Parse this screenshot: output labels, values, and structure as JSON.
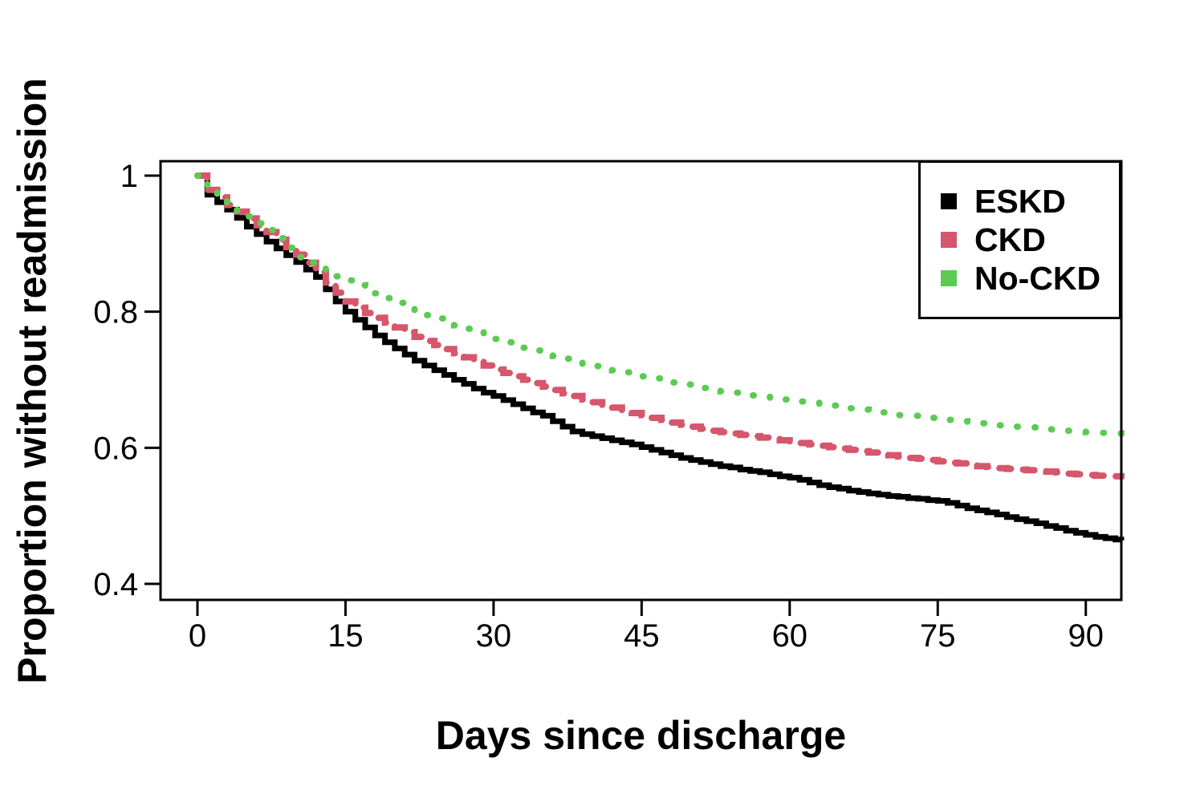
{
  "chart_data": {
    "type": "line",
    "subtype": "kaplan-meier-step",
    "title": "",
    "xlabel": "Days since discharge",
    "ylabel": "Proportion without readmission",
    "xlim": [
      -3.74,
      93.6
    ],
    "ylim": [
      0.3764,
      1.0212
    ],
    "xticks": [
      0,
      15,
      30,
      45,
      60,
      75,
      90
    ],
    "xtick_labels": [
      "0",
      "15",
      "30",
      "45",
      "60",
      "75",
      "90"
    ],
    "yticks": [
      0.4,
      0.6,
      0.8,
      1
    ],
    "ytick_labels": [
      "0.4",
      "0.6",
      "0.8",
      "1"
    ],
    "grid": false,
    "legend": {
      "position": "top-right",
      "border": true
    },
    "series": [
      {
        "name": "ESKD",
        "color": "#000000",
        "line_style": "solid",
        "line_width": 7,
        "points": [
          [
            0,
            1.0
          ],
          [
            1,
            0.972
          ],
          [
            2,
            0.961
          ],
          [
            3,
            0.95
          ],
          [
            4,
            0.938
          ],
          [
            5,
            0.925
          ],
          [
            6,
            0.914
          ],
          [
            7,
            0.903
          ],
          [
            8,
            0.893
          ],
          [
            9,
            0.883
          ],
          [
            10,
            0.873
          ],
          [
            11,
            0.862
          ],
          [
            12,
            0.851
          ],
          [
            13,
            0.833
          ],
          [
            14,
            0.815
          ],
          [
            15,
            0.8
          ],
          [
            16,
            0.788
          ],
          [
            17,
            0.777
          ],
          [
            18,
            0.765
          ],
          [
            19,
            0.755
          ],
          [
            20,
            0.746
          ],
          [
            21,
            0.737
          ],
          [
            22,
            0.728
          ],
          [
            23,
            0.721
          ],
          [
            24,
            0.714
          ],
          [
            25,
            0.707
          ],
          [
            26,
            0.7
          ],
          [
            27,
            0.694
          ],
          [
            28,
            0.687
          ],
          [
            29,
            0.681
          ],
          [
            30,
            0.676
          ],
          [
            31,
            0.67
          ],
          [
            32,
            0.664
          ],
          [
            33,
            0.658
          ],
          [
            34,
            0.652
          ],
          [
            35,
            0.647
          ],
          [
            36,
            0.639
          ],
          [
            37,
            0.631
          ],
          [
            38,
            0.624
          ],
          [
            39,
            0.62
          ],
          [
            40,
            0.617
          ],
          [
            41,
            0.614
          ],
          [
            42,
            0.611
          ],
          [
            43,
            0.608
          ],
          [
            44,
            0.605
          ],
          [
            45,
            0.601
          ],
          [
            46,
            0.597
          ],
          [
            47,
            0.593
          ],
          [
            48,
            0.589
          ],
          [
            49,
            0.585
          ],
          [
            50,
            0.582
          ],
          [
            51,
            0.579
          ],
          [
            52,
            0.576
          ],
          [
            53,
            0.573
          ],
          [
            54,
            0.571
          ],
          [
            55,
            0.568
          ],
          [
            56,
            0.566
          ],
          [
            57,
            0.564
          ],
          [
            58,
            0.561
          ],
          [
            59,
            0.558
          ],
          [
            60,
            0.556
          ],
          [
            61,
            0.553
          ],
          [
            62,
            0.549
          ],
          [
            63,
            0.545
          ],
          [
            64,
            0.542
          ],
          [
            65,
            0.54
          ],
          [
            66,
            0.537
          ],
          [
            67,
            0.535
          ],
          [
            68,
            0.533
          ],
          [
            69,
            0.531
          ],
          [
            70,
            0.529
          ],
          [
            71,
            0.528
          ],
          [
            72,
            0.526
          ],
          [
            73,
            0.525
          ],
          [
            74,
            0.523
          ],
          [
            75,
            0.522
          ],
          [
            76,
            0.519
          ],
          [
            77,
            0.515
          ],
          [
            78,
            0.511
          ],
          [
            79,
            0.508
          ],
          [
            80,
            0.505
          ],
          [
            81,
            0.502
          ],
          [
            82,
            0.498
          ],
          [
            83,
            0.495
          ],
          [
            84,
            0.492
          ],
          [
            85,
            0.489
          ],
          [
            86,
            0.485
          ],
          [
            87,
            0.482
          ],
          [
            88,
            0.478
          ],
          [
            89,
            0.475
          ],
          [
            90,
            0.472
          ],
          [
            91,
            0.469
          ],
          [
            92,
            0.467
          ],
          [
            93,
            0.465
          ],
          [
            93.6,
            0.464
          ]
        ]
      },
      {
        "name": "CKD",
        "color": "#D6566B",
        "line_style": "dashed",
        "line_width": 8,
        "points": [
          [
            0,
            1.0
          ],
          [
            1,
            0.979
          ],
          [
            2,
            0.968
          ],
          [
            3,
            0.957
          ],
          [
            4,
            0.947
          ],
          [
            5,
            0.937
          ],
          [
            6,
            0.927
          ],
          [
            7,
            0.917
          ],
          [
            8,
            0.906
          ],
          [
            9,
            0.895
          ],
          [
            10,
            0.884
          ],
          [
            11,
            0.872
          ],
          [
            12,
            0.858
          ],
          [
            13,
            0.843
          ],
          [
            14,
            0.828
          ],
          [
            15,
            0.815
          ],
          [
            16,
            0.806
          ],
          [
            17,
            0.798
          ],
          [
            18,
            0.791
          ],
          [
            19,
            0.784
          ],
          [
            20,
            0.777
          ],
          [
            21,
            0.77
          ],
          [
            22,
            0.763
          ],
          [
            23,
            0.757
          ],
          [
            24,
            0.751
          ],
          [
            25,
            0.745
          ],
          [
            26,
            0.739
          ],
          [
            27,
            0.733
          ],
          [
            28,
            0.727
          ],
          [
            29,
            0.721
          ],
          [
            30,
            0.715
          ],
          [
            31,
            0.71
          ],
          [
            32,
            0.705
          ],
          [
            33,
            0.7
          ],
          [
            34,
            0.695
          ],
          [
            35,
            0.69
          ],
          [
            36,
            0.685
          ],
          [
            37,
            0.68
          ],
          [
            38,
            0.676
          ],
          [
            39,
            0.671
          ],
          [
            40,
            0.667
          ],
          [
            41,
            0.663
          ],
          [
            42,
            0.659
          ],
          [
            43,
            0.655
          ],
          [
            44,
            0.651
          ],
          [
            45,
            0.648
          ],
          [
            46,
            0.644
          ],
          [
            47,
            0.641
          ],
          [
            48,
            0.637
          ],
          [
            49,
            0.634
          ],
          [
            50,
            0.631
          ],
          [
            51,
            0.628
          ],
          [
            52,
            0.625
          ],
          [
            53,
            0.623
          ],
          [
            54,
            0.621
          ],
          [
            55,
            0.619
          ],
          [
            56,
            0.617
          ],
          [
            57,
            0.615
          ],
          [
            58,
            0.613
          ],
          [
            59,
            0.611
          ],
          [
            60,
            0.609
          ],
          [
            61,
            0.607
          ],
          [
            62,
            0.605
          ],
          [
            63,
            0.603
          ],
          [
            64,
            0.601
          ],
          [
            65,
            0.599
          ],
          [
            66,
            0.597
          ],
          [
            67,
            0.595
          ],
          [
            68,
            0.593
          ],
          [
            69,
            0.591
          ],
          [
            70,
            0.589
          ],
          [
            71,
            0.587
          ],
          [
            72,
            0.585
          ],
          [
            73,
            0.584
          ],
          [
            74,
            0.582
          ],
          [
            75,
            0.58
          ],
          [
            76,
            0.578
          ],
          [
            77,
            0.577
          ],
          [
            78,
            0.575
          ],
          [
            79,
            0.573
          ],
          [
            80,
            0.572
          ],
          [
            81,
            0.57
          ],
          [
            82,
            0.569
          ],
          [
            83,
            0.568
          ],
          [
            84,
            0.567
          ],
          [
            85,
            0.566
          ],
          [
            86,
            0.565
          ],
          [
            87,
            0.564
          ],
          [
            88,
            0.562
          ],
          [
            89,
            0.561
          ],
          [
            90,
            0.56
          ],
          [
            91,
            0.559
          ],
          [
            92,
            0.558
          ],
          [
            93.6,
            0.557
          ]
        ]
      },
      {
        "name": "No-CKD",
        "color": "#5CCB52",
        "line_style": "dotted",
        "line_width": 8,
        "points": [
          [
            0,
            1.0
          ],
          [
            1,
            0.981
          ],
          [
            2,
            0.97
          ],
          [
            3,
            0.959
          ],
          [
            4,
            0.949
          ],
          [
            5,
            0.94
          ],
          [
            6,
            0.93
          ],
          [
            7,
            0.92
          ],
          [
            8,
            0.908
          ],
          [
            9,
            0.894
          ],
          [
            10,
            0.88
          ],
          [
            11,
            0.872
          ],
          [
            12,
            0.866
          ],
          [
            13,
            0.859
          ],
          [
            14,
            0.852
          ],
          [
            15,
            0.846
          ],
          [
            16,
            0.839
          ],
          [
            17,
            0.833
          ],
          [
            18,
            0.827
          ],
          [
            19,
            0.82
          ],
          [
            20,
            0.813
          ],
          [
            21,
            0.807
          ],
          [
            22,
            0.801
          ],
          [
            23,
            0.795
          ],
          [
            24,
            0.79
          ],
          [
            25,
            0.785
          ],
          [
            26,
            0.78
          ],
          [
            27,
            0.775
          ],
          [
            28,
            0.77
          ],
          [
            29,
            0.765
          ],
          [
            30,
            0.76
          ],
          [
            31,
            0.755
          ],
          [
            32,
            0.751
          ],
          [
            33,
            0.747
          ],
          [
            34,
            0.743
          ],
          [
            35,
            0.739
          ],
          [
            36,
            0.735
          ],
          [
            37,
            0.731
          ],
          [
            38,
            0.727
          ],
          [
            39,
            0.723
          ],
          [
            40,
            0.72
          ],
          [
            41,
            0.717
          ],
          [
            42,
            0.714
          ],
          [
            43,
            0.711
          ],
          [
            44,
            0.708
          ],
          [
            45,
            0.705
          ],
          [
            46,
            0.702
          ],
          [
            47,
            0.699
          ],
          [
            48,
            0.696
          ],
          [
            49,
            0.693
          ],
          [
            50,
            0.691
          ],
          [
            51,
            0.688
          ],
          [
            52,
            0.686
          ],
          [
            53,
            0.683
          ],
          [
            54,
            0.681
          ],
          [
            55,
            0.679
          ],
          [
            56,
            0.677
          ],
          [
            57,
            0.675
          ],
          [
            58,
            0.673
          ],
          [
            59,
            0.671
          ],
          [
            60,
            0.669
          ],
          [
            61,
            0.668
          ],
          [
            62,
            0.666
          ],
          [
            63,
            0.664
          ],
          [
            64,
            0.662
          ],
          [
            65,
            0.66
          ],
          [
            66,
            0.658
          ],
          [
            67,
            0.656
          ],
          [
            68,
            0.654
          ],
          [
            69,
            0.652
          ],
          [
            70,
            0.65
          ],
          [
            71,
            0.648
          ],
          [
            72,
            0.647
          ],
          [
            73,
            0.645
          ],
          [
            74,
            0.644
          ],
          [
            75,
            0.642
          ],
          [
            76,
            0.641
          ],
          [
            77,
            0.639
          ],
          [
            78,
            0.638
          ],
          [
            79,
            0.636
          ],
          [
            80,
            0.635
          ],
          [
            81,
            0.633
          ],
          [
            82,
            0.632
          ],
          [
            83,
            0.631
          ],
          [
            84,
            0.63
          ],
          [
            85,
            0.629
          ],
          [
            86,
            0.627
          ],
          [
            87,
            0.626
          ],
          [
            88,
            0.625
          ],
          [
            89,
            0.624
          ],
          [
            90,
            0.623
          ],
          [
            91,
            0.622
          ],
          [
            92,
            0.621
          ],
          [
            93.6,
            0.62
          ]
        ]
      }
    ],
    "axis_color": "#000000",
    "background_color": "#ffffff"
  }
}
